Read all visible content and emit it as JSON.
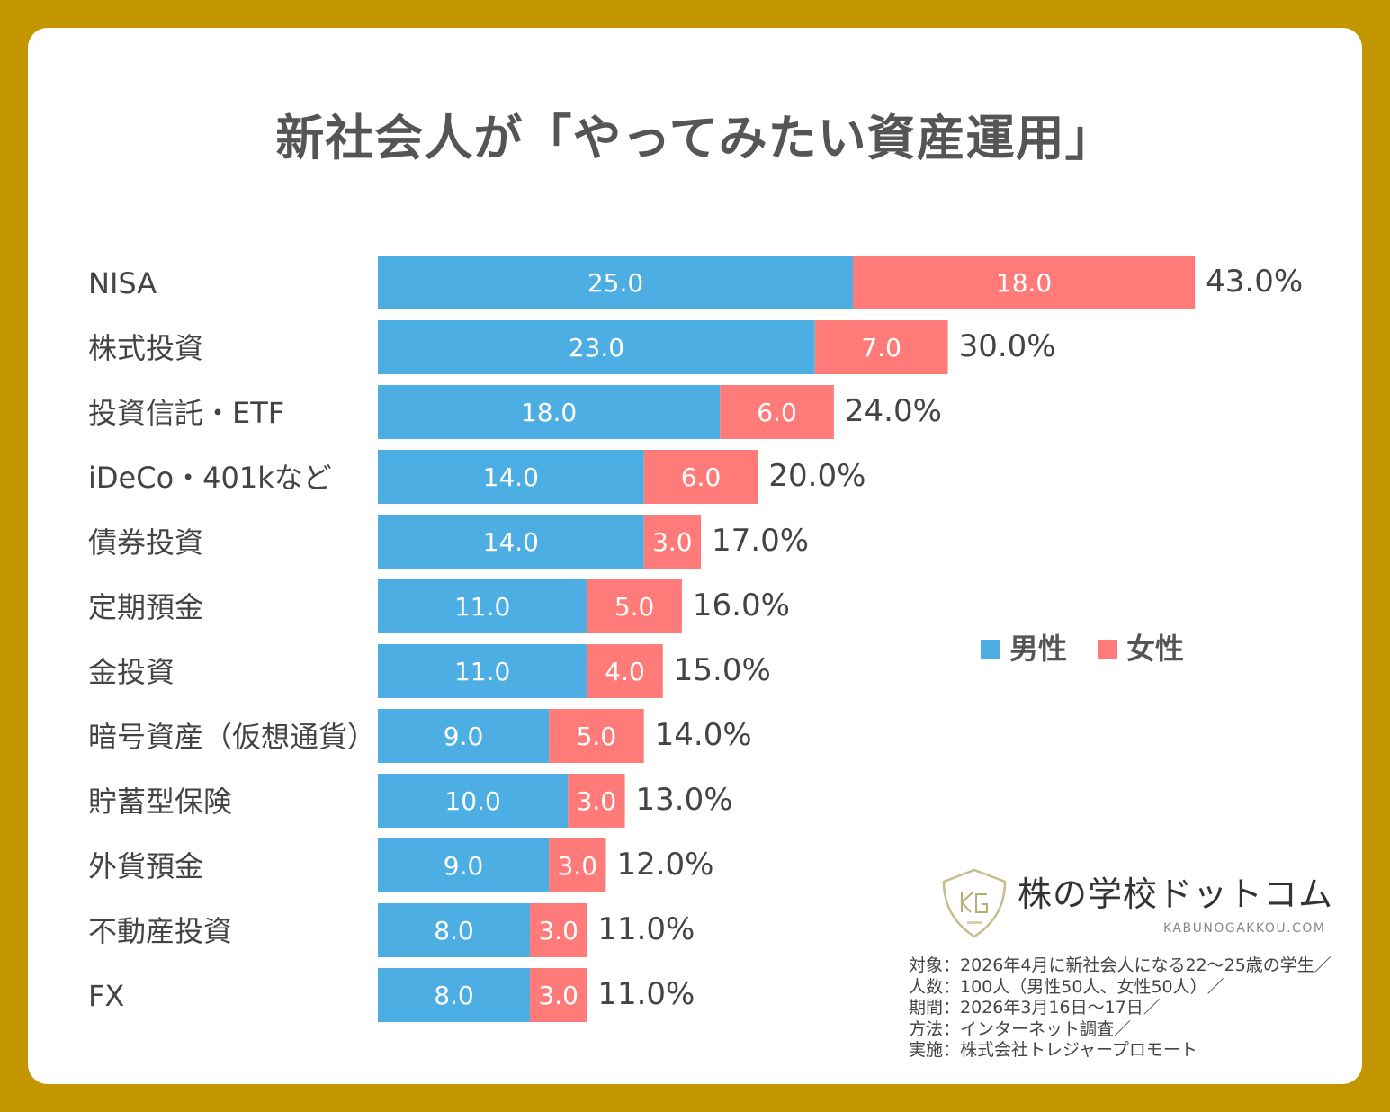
{
  "chart_data": {
    "type": "bar",
    "orientation": "horizontal",
    "stacked": true,
    "title": "新社会人が「やってみたい資産運用」",
    "categories": [
      "NISA",
      "株式投資",
      "投資信託・ETF",
      "iDeCo・401kなど",
      "債券投資",
      "定期預金",
      "金投資",
      "暗号資産（仮想通貨）",
      "貯蓄型保険",
      "外貨預金",
      "不動産投資",
      "FX"
    ],
    "series": [
      {
        "name": "男性",
        "color": "#4DAEE3",
        "values": [
          25.0,
          23.0,
          18.0,
          14.0,
          14.0,
          11.0,
          11.0,
          9.0,
          10.0,
          9.0,
          8.0,
          8.0
        ]
      },
      {
        "name": "女性",
        "color": "#FF7B79",
        "values": [
          18.0,
          7.0,
          6.0,
          6.0,
          3.0,
          5.0,
          4.0,
          5.0,
          3.0,
          3.0,
          3.0,
          3.0
        ]
      }
    ],
    "totals": [
      "43.0%",
      "30.0%",
      "24.0%",
      "20.0%",
      "17.0%",
      "16.0%",
      "15.0%",
      "14.0%",
      "13.0%",
      "12.0%",
      "11.0%",
      "11.0%"
    ],
    "legend_position": "right",
    "grid": false
  },
  "logo": {
    "name": "株の学校ドットコム",
    "url": "KABUNOGAKKOU.COM",
    "mark": "KG COM"
  },
  "notes": [
    "対象：2026年4月に新社会人になる22〜25歳の学生／",
    "人数：100人（男性50人、女性50人）／",
    "期間：2026年3月16日〜17日／",
    "方法：インターネット調査／",
    "実施：株式会社トレジャープロモート"
  ],
  "colors": {
    "frame": "#C39600",
    "text": "#555555"
  }
}
